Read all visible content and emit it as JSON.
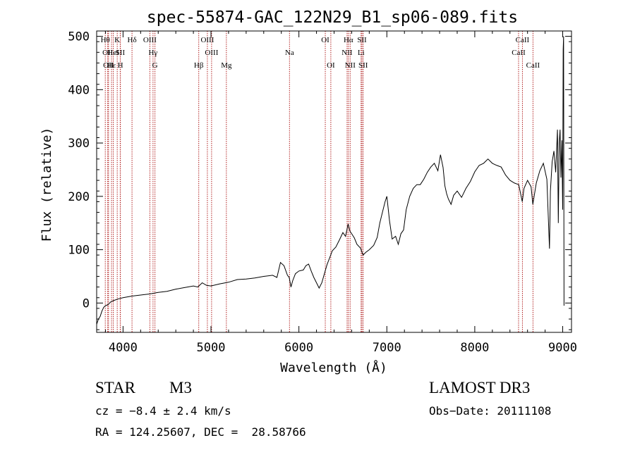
{
  "chart_data": {
    "type": "line",
    "title": "spec-55874-GAC_122N29_B1_sp06-089.fits",
    "xlabel": "Wavelength (Å)",
    "ylabel": "Flux (relative)",
    "xlim": [
      3700,
      9100
    ],
    "ylim": [
      -55,
      510
    ],
    "x_ticks": [
      4000,
      5000,
      6000,
      7000,
      8000,
      9000
    ],
    "y_ticks": [
      0,
      100,
      200,
      300,
      400,
      500
    ],
    "grid": false,
    "series": [
      {
        "name": "flux",
        "points": [
          [
            3700,
            -40
          ],
          [
            3720,
            -30
          ],
          [
            3740,
            -25
          ],
          [
            3760,
            -15
          ],
          [
            3780,
            -8
          ],
          [
            3800,
            -5
          ],
          [
            3830,
            -3
          ],
          [
            3860,
            2
          ],
          [
            3900,
            5
          ],
          [
            3950,
            8
          ],
          [
            4000,
            10
          ],
          [
            4100,
            13
          ],
          [
            4200,
            15
          ],
          [
            4300,
            17
          ],
          [
            4400,
            20
          ],
          [
            4500,
            22
          ],
          [
            4600,
            26
          ],
          [
            4700,
            29
          ],
          [
            4800,
            32
          ],
          [
            4850,
            30
          ],
          [
            4900,
            38
          ],
          [
            4950,
            33
          ],
          [
            5000,
            32
          ],
          [
            5100,
            36
          ],
          [
            5200,
            39
          ],
          [
            5300,
            44
          ],
          [
            5400,
            45
          ],
          [
            5500,
            47
          ],
          [
            5600,
            50
          ],
          [
            5700,
            52
          ],
          [
            5750,
            48
          ],
          [
            5790,
            76
          ],
          [
            5830,
            70
          ],
          [
            5870,
            52
          ],
          [
            5890,
            48
          ],
          [
            5910,
            30
          ],
          [
            5930,
            42
          ],
          [
            5960,
            55
          ],
          [
            6000,
            60
          ],
          [
            6050,
            62
          ],
          [
            6080,
            70
          ],
          [
            6110,
            73
          ],
          [
            6140,
            60
          ],
          [
            6170,
            48
          ],
          [
            6200,
            38
          ],
          [
            6230,
            28
          ],
          [
            6260,
            38
          ],
          [
            6290,
            55
          ],
          [
            6320,
            72
          ],
          [
            6350,
            85
          ],
          [
            6380,
            98
          ],
          [
            6420,
            105
          ],
          [
            6460,
            118
          ],
          [
            6500,
            132
          ],
          [
            6530,
            125
          ],
          [
            6560,
            148
          ],
          [
            6580,
            135
          ],
          [
            6600,
            130
          ],
          [
            6630,
            122
          ],
          [
            6660,
            110
          ],
          [
            6700,
            103
          ],
          [
            6730,
            90
          ],
          [
            6760,
            95
          ],
          [
            6800,
            100
          ],
          [
            6850,
            108
          ],
          [
            6890,
            123
          ],
          [
            6920,
            150
          ],
          [
            6950,
            170
          ],
          [
            6980,
            190
          ],
          [
            7000,
            200
          ],
          [
            7030,
            155
          ],
          [
            7060,
            120
          ],
          [
            7100,
            125
          ],
          [
            7130,
            110
          ],
          [
            7160,
            130
          ],
          [
            7190,
            137
          ],
          [
            7220,
            175
          ],
          [
            7260,
            200
          ],
          [
            7300,
            215
          ],
          [
            7340,
            222
          ],
          [
            7380,
            222
          ],
          [
            7420,
            232
          ],
          [
            7460,
            245
          ],
          [
            7500,
            255
          ],
          [
            7540,
            262
          ],
          [
            7580,
            248
          ],
          [
            7610,
            278
          ],
          [
            7640,
            254
          ],
          [
            7660,
            220
          ],
          [
            7680,
            205
          ],
          [
            7700,
            195
          ],
          [
            7730,
            185
          ],
          [
            7760,
            202
          ],
          [
            7800,
            210
          ],
          [
            7850,
            198
          ],
          [
            7900,
            215
          ],
          [
            7950,
            228
          ],
          [
            8000,
            246
          ],
          [
            8050,
            258
          ],
          [
            8100,
            262
          ],
          [
            8150,
            270
          ],
          [
            8200,
            262
          ],
          [
            8250,
            258
          ],
          [
            8300,
            255
          ],
          [
            8350,
            240
          ],
          [
            8400,
            230
          ],
          [
            8450,
            225
          ],
          [
            8500,
            222
          ],
          [
            8540,
            190
          ],
          [
            8560,
            215
          ],
          [
            8600,
            230
          ],
          [
            8640,
            218
          ],
          [
            8660,
            185
          ],
          [
            8700,
            225
          ],
          [
            8740,
            248
          ],
          [
            8780,
            262
          ],
          [
            8820,
            232
          ],
          [
            8850,
            102
          ],
          [
            8860,
            210
          ],
          [
            8880,
            265
          ],
          [
            8900,
            285
          ],
          [
            8920,
            245
          ],
          [
            8940,
            325
          ],
          [
            8950,
            150
          ],
          [
            8960,
            300
          ],
          [
            8970,
            325
          ],
          [
            8980,
            235
          ],
          [
            8990,
            305
          ],
          [
            9000,
            175
          ],
          [
            9005,
            475
          ],
          [
            9010,
            500
          ],
          [
            9015,
            -5
          ]
        ]
      }
    ],
    "lines": [
      {
        "wavelength": 3798,
        "label": "Hθ",
        "row": 0,
        "color": "#b22222"
      },
      {
        "wavelength": 3826,
        "label": "OII",
        "row": 1,
        "color": "#b22222"
      },
      {
        "wavelength": 3835,
        "label": "OII",
        "row": 2,
        "color": "#b22222"
      },
      {
        "wavelength": 3869,
        "label": "Hε",
        "row": 2,
        "color": "#b22222"
      },
      {
        "wavelength": 3889,
        "label": "HeI",
        "row": 1,
        "color": "#b22222"
      },
      {
        "wavelength": 3934,
        "label": "K",
        "row": 0,
        "color": "#b22222"
      },
      {
        "wavelength": 3968,
        "label": "SII",
        "row": 1,
        "color": "#b22222"
      },
      {
        "wavelength": 3970,
        "label": "H",
        "row": 2,
        "color": "#b22222"
      },
      {
        "wavelength": 4102,
        "label": "Hδ",
        "row": 0,
        "color": "#b22222"
      },
      {
        "wavelength": 4305,
        "label": "OIII",
        "row": 0,
        "color": "#b22222"
      },
      {
        "wavelength": 4341,
        "label": "Hγ",
        "row": 1,
        "color": "#b22222"
      },
      {
        "wavelength": 4363,
        "label": "G",
        "row": 2,
        "color": "#b22222"
      },
      {
        "wavelength": 4861,
        "label": "Hβ",
        "row": 2,
        "color": "#b22222"
      },
      {
        "wavelength": 4959,
        "label": "OIII",
        "row": 0,
        "color": "#b22222"
      },
      {
        "wavelength": 5007,
        "label": "OIII",
        "row": 1,
        "color": "#b22222"
      },
      {
        "wavelength": 5175,
        "label": "Mg",
        "row": 2,
        "color": "#b22222"
      },
      {
        "wavelength": 5893,
        "label": "Na",
        "row": 1,
        "color": "#b22222"
      },
      {
        "wavelength": 6300,
        "label": "OI",
        "row": 0,
        "color": "#b22222"
      },
      {
        "wavelength": 6363,
        "label": "OI",
        "row": 2,
        "color": "#b22222"
      },
      {
        "wavelength": 6548,
        "label": "NII",
        "row": 1,
        "color": "#b22222"
      },
      {
        "wavelength": 6563,
        "label": "Hα",
        "row": 0,
        "color": "#b22222"
      },
      {
        "wavelength": 6583,
        "label": "NII",
        "row": 2,
        "color": "#b22222"
      },
      {
        "wavelength": 6707,
        "label": "Li",
        "row": 1,
        "color": "#b22222"
      },
      {
        "wavelength": 6717,
        "label": "SII",
        "row": 0,
        "color": "#b22222"
      },
      {
        "wavelength": 6731,
        "label": "SII",
        "row": 2,
        "color": "#b22222"
      },
      {
        "wavelength": 8498,
        "label": "CaII",
        "row": 1,
        "color": "#b22222"
      },
      {
        "wavelength": 8542,
        "label": "CaII",
        "row": 0,
        "color": "#b22222"
      },
      {
        "wavelength": 8662,
        "label": "CaII",
        "row": 2,
        "color": "#b22222"
      }
    ]
  },
  "info": {
    "class_label": "STAR",
    "subclass": "M3",
    "survey": "LAMOST DR3",
    "cz": "cz = −8.4 ± 2.4 km/s",
    "obs_date": "Obs−Date: 20111108",
    "coords": "RA = 124.25607, DEC =  28.58766"
  }
}
